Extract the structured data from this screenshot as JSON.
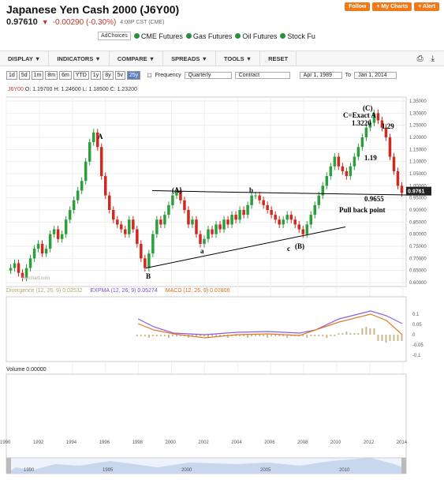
{
  "header": {
    "title": "Japanese Yen Cash 2000 (J6Y00)",
    "last": "0.97610",
    "change": "-0.00290 (-0.30%)",
    "time": "4:08P CST (CME)",
    "links": [
      "Follow",
      "+ My Charts",
      "+ Alert"
    ]
  },
  "ads": {
    "adchoices": "AdChoices",
    "items": [
      "CME Futures",
      "Gas Futures",
      "Oil Futures",
      "Stock Fu"
    ]
  },
  "menu": [
    "DISPLAY",
    "INDICATORS",
    "COMPARE",
    "SPREADS",
    "TOOLS",
    "RESET"
  ],
  "menu_icons": [
    "printer-icon",
    "download-icon"
  ],
  "ranges": [
    "1d",
    "5d",
    "1m",
    "8m",
    "6m",
    "YTD",
    "1y",
    "8y",
    "5v",
    "25y"
  ],
  "active_range": "25y",
  "controls": {
    "frequency_label": "Frequency",
    "frequency": "Quarterly",
    "contract": "Contract",
    "from": "Apr 1, 1989",
    "to_label": "To",
    "to": "Jan 1, 2014"
  },
  "ohlc": {
    "symbol": "J6Y00",
    "text": "O: 1.19700  H: 1.24600  L: 1.18500  C: 1.23200"
  },
  "indicators": {
    "divergence": "Divergence (12, 26, 9) 0.02532",
    "expma": "EXPMA (12, 26, 9) 0.05274",
    "macd": "MACD (12, 26, 9) 0.07806",
    "volume": "Volume 0.00000"
  },
  "watermark": "barchart.com",
  "chart_data": {
    "type": "candlestick",
    "last_label": "0.9761",
    "y_ticks": [
      "1.35000",
      "1.30000",
      "1.25000",
      "1.20000",
      "1.15000",
      "1.10000",
      "1.05000",
      "1.00000",
      "0.95000",
      "0.90000",
      "0.85000",
      "0.80000",
      "0.75000",
      "0.70000",
      "0.65000",
      "0.60000"
    ],
    "x_ticks": [
      "1990",
      "1992",
      "1994",
      "1996",
      "1998",
      "2000",
      "2002",
      "2004",
      "2006",
      "2008",
      "2010",
      "2012",
      "2014"
    ],
    "macd_ticks": [
      "0.1",
      "0.05",
      "0",
      "-0.05",
      "-0.1"
    ],
    "nav_ticks": [
      "1990",
      "1995",
      "2000",
      "2005",
      "2010"
    ],
    "annotations": {
      "A": "A",
      "B": "B",
      "paren_A": "(A)",
      "b": "b",
      "a": "a",
      "c": "c",
      "paren_B": "(B)",
      "paren_C": "(C)",
      "c_exact": "C=Exact A",
      "v13220": "1.3220",
      "v129": "1.29",
      "v119": "1.19",
      "v09655": "0.9655",
      "pullback": "Pull back point"
    },
    "closes": [
      0.66,
      0.68,
      0.64,
      0.62,
      0.66,
      0.7,
      0.74,
      0.76,
      0.72,
      0.74,
      0.8,
      0.82,
      0.78,
      0.8,
      0.86,
      0.9,
      0.94,
      0.98,
      1.02,
      1.1,
      1.18,
      1.22,
      1.16,
      1.04,
      0.96,
      0.9,
      0.86,
      0.84,
      0.82,
      0.8,
      0.86,
      0.82,
      0.76,
      0.7,
      0.66,
      0.72,
      0.8,
      0.86,
      0.84,
      0.88,
      0.92,
      0.96,
      0.98,
      0.94,
      0.9,
      0.84,
      0.86,
      0.8,
      0.76,
      0.78,
      0.82,
      0.8,
      0.84,
      0.82,
      0.86,
      0.84,
      0.88,
      0.86,
      0.9,
      0.88,
      0.92,
      0.96,
      0.96,
      0.94,
      0.92,
      0.9,
      0.88,
      0.86,
      0.84,
      0.86,
      0.88,
      0.86,
      0.84,
      0.82,
      0.8,
      0.84,
      0.88,
      0.92,
      0.96,
      1.0,
      1.04,
      1.08,
      1.12,
      1.08,
      1.06,
      1.04,
      1.08,
      1.12,
      1.16,
      1.2,
      1.24,
      1.26,
      1.3,
      1.27,
      1.24,
      1.2,
      1.12,
      1.06,
      1.0,
      0.97
    ]
  }
}
